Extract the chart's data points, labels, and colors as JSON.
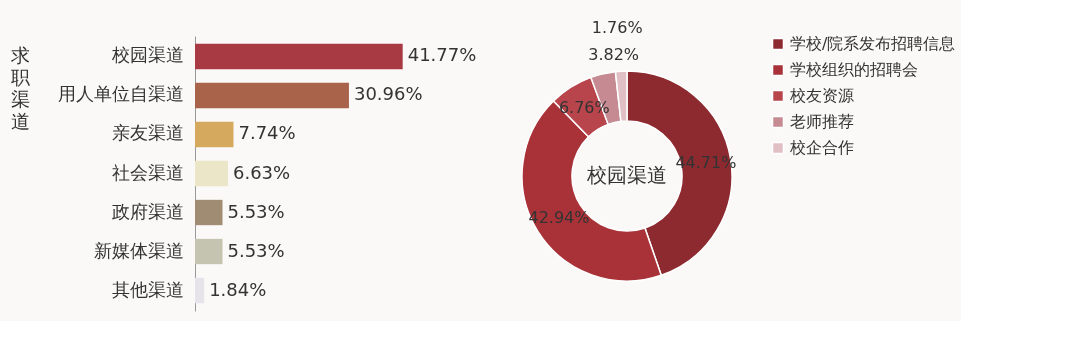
{
  "chart_data": [
    {
      "type": "bar",
      "orientation": "horizontal",
      "ylabel": "求职渠道",
      "categories": [
        "校园渠道",
        "用人单位自渠道",
        "亲友渠道",
        "社会渠道",
        "政府渠道",
        "新媒体渠道",
        "其他渠道"
      ],
      "values": [
        41.77,
        30.96,
        7.74,
        6.63,
        5.53,
        5.53,
        1.84
      ],
      "value_labels": [
        "41.77%",
        "30.96%",
        "7.74%",
        "6.63%",
        "5.53%",
        "5.53%",
        "1.84%"
      ],
      "colors": [
        "#a83a44",
        "#a8634a",
        "#d6aa5e",
        "#ebe6c8",
        "#a08c72",
        "#c5c4b0",
        "#e6e4ea"
      ],
      "legend": false
    },
    {
      "type": "donut",
      "categories": [
        "学校/院系发布招聘信息",
        "学校组织的招聘会",
        "校友资源",
        "老师推荐",
        "校企合作"
      ],
      "values": [
        44.71,
        42.94,
        6.76,
        3.82,
        1.76
      ],
      "value_labels": [
        "44.71%",
        "42.94%",
        "6.76%",
        "3.82%",
        "1.76%"
      ],
      "colors": [
        "#8c2a30",
        "#a83238",
        "#b8444c",
        "#c58a92",
        "#e0c0c4"
      ],
      "legend": "right",
      "annotations": [
        "校园渠道"
      ]
    }
  ]
}
